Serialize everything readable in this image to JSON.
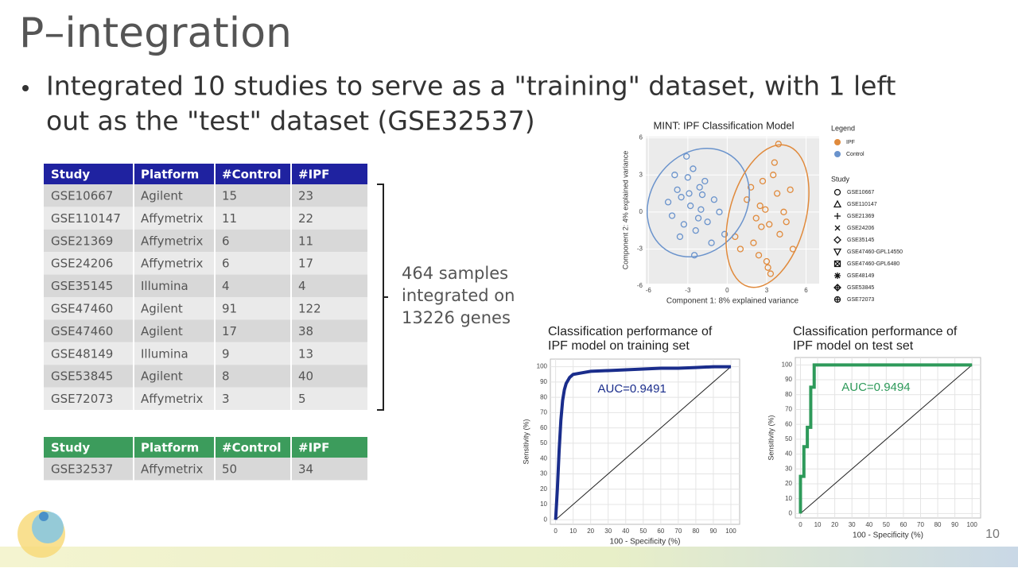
{
  "slide": {
    "title": "P–integration",
    "bullet": "Integrated 10 studies to serve as a \"training\" dataset, with 1 left",
    "bullet_cont": "out as the \"test\" dataset (GSE32537)",
    "page_number": "10"
  },
  "training_table": {
    "header": [
      "Study",
      "Platform",
      "#Control",
      "#IPF"
    ],
    "rows": [
      [
        "GSE10667",
        "Agilent",
        "15",
        "23"
      ],
      [
        "GSE110147",
        "Affymetrix",
        "11",
        "22"
      ],
      [
        "GSE21369",
        "Affymetrix",
        "6",
        "11"
      ],
      [
        "GSE24206",
        "Affymetrix",
        "6",
        "17"
      ],
      [
        "GSE35145",
        "Illumina",
        "4",
        "4"
      ],
      [
        "GSE47460",
        "Agilent",
        "91",
        "122"
      ],
      [
        "GSE47460",
        "Agilent",
        "17",
        "38"
      ],
      [
        "GSE48149",
        "Illumina",
        "9",
        "13"
      ],
      [
        "GSE53845",
        "Agilent",
        "8",
        "40"
      ],
      [
        "GSE72073",
        "Affymetrix",
        "3",
        "5"
      ]
    ]
  },
  "summary": [
    "464 samples",
    "integrated on",
    "13226 genes"
  ],
  "test_table": {
    "header": [
      "Study",
      "Platform",
      "#Control",
      "#IPF"
    ],
    "rows": [
      [
        "GSE32537",
        "Affymetrix",
        "50",
        "34"
      ]
    ]
  },
  "chart_data": [
    {
      "type": "scatter",
      "title": "MINT: IPF Classification Model",
      "x_label": "Component 1: 8% explained variance",
      "y_label": "Component 2: 4% explained variance",
      "xlim": [
        -6.2,
        7
      ],
      "xticks": [
        -6,
        -3,
        0,
        3,
        6
      ],
      "ylim": [
        -5.8,
        6.1
      ],
      "yticks": [
        -6,
        -3,
        0,
        3,
        6
      ],
      "grid": true,
      "legend_title": "Legend",
      "study_title": "Study",
      "studies": [
        "GSE10667",
        "GSE110147",
        "GSE21369",
        "GSE24206",
        "GSE35145",
        "GSE47460-GPL14550",
        "GSE47460-GPL6480",
        "GSE48149",
        "GSE53845",
        "GSE72073"
      ],
      "series": [
        {
          "name": "IPF",
          "color": "#e08a3c",
          "x": [
            2.5,
            3.2,
            3.8,
            2.0,
            4.3,
            1.5,
            3.0,
            2.7,
            4.0,
            3.5,
            1.0,
            2.2,
            4.8,
            3.3,
            2.9,
            0.6,
            3.6,
            2.4,
            4.5,
            1.8,
            3.9,
            2.6,
            5.0,
            3.1
          ],
          "y": [
            0.5,
            -1.0,
            1.5,
            -2.5,
            0.0,
            1.0,
            -4.0,
            2.5,
            -1.8,
            3.0,
            -3.0,
            -0.5,
            1.8,
            -5.0,
            0.2,
            -2.0,
            4.0,
            -3.5,
            -0.8,
            2.0,
            5.5,
            -1.2,
            -3.0,
            -4.5
          ]
        },
        {
          "name": "Control",
          "color": "#6a93cc",
          "x": [
            -3.5,
            -2.8,
            -2.1,
            -1.5,
            -4.2,
            -3.0,
            -2.4,
            -1.0,
            -3.8,
            -2.0,
            -2.6,
            -3.3,
            -1.7,
            -4.5,
            -2.2,
            -0.6,
            -3.1,
            -1.2,
            -2.9,
            -3.6,
            -0.2,
            -4.0,
            -1.9,
            -2.5
          ],
          "y": [
            1.2,
            0.5,
            2.0,
            -0.8,
            -0.3,
            2.8,
            -1.5,
            1.0,
            1.8,
            0.2,
            3.5,
            -1.0,
            2.5,
            0.8,
            -0.5,
            0.0,
            4.5,
            -2.5,
            1.5,
            -2.0,
            -1.8,
            3.0,
            1.4,
            -3.5
          ]
        }
      ]
    },
    {
      "type": "line",
      "title": [
        "Classification performance of",
        "IPF model on training set"
      ],
      "x_label": "100 - Specificity (%)",
      "y_label": "Sensitivity (%)",
      "annotation": "AUC=0.9491",
      "xlim": [
        -3,
        105
      ],
      "xticks": [
        0,
        10,
        20,
        30,
        40,
        50,
        60,
        70,
        80,
        90,
        100
      ],
      "ylim": [
        -3,
        105
      ],
      "yticks": [
        0,
        10,
        20,
        30,
        40,
        50,
        60,
        70,
        80,
        90,
        100
      ],
      "grid": true,
      "series": [
        {
          "color": "#1a2d8c",
          "x": [
            0,
            1,
            2,
            3,
            4,
            5,
            6,
            8,
            10,
            15,
            20,
            30,
            40,
            50,
            60,
            70,
            80,
            90,
            100
          ],
          "y": [
            0,
            20,
            45,
            65,
            78,
            85,
            89,
            93,
            95,
            96,
            97,
            97.5,
            98,
            98.5,
            99,
            99,
            99.5,
            100,
            100
          ]
        }
      ]
    },
    {
      "type": "line",
      "title": [
        "Classification performance of",
        "IPF model on test set"
      ],
      "x_label": "100 - Specificity (%)",
      "y_label": "Sensitivity (%)",
      "annotation": "AUC=0.9494",
      "xlim": [
        -3,
        105
      ],
      "xticks": [
        0,
        10,
        20,
        30,
        40,
        50,
        60,
        70,
        80,
        90,
        100
      ],
      "ylim": [
        -3,
        105
      ],
      "yticks": [
        0,
        10,
        20,
        30,
        40,
        50,
        60,
        70,
        80,
        90,
        100
      ],
      "grid": true,
      "series": [
        {
          "color": "#2e9a5a",
          "x": [
            0,
            0,
            2,
            2,
            4,
            4,
            6,
            6,
            8,
            8,
            100
          ],
          "y": [
            0,
            25,
            25,
            45,
            45,
            58,
            58,
            85,
            85,
            100,
            100
          ]
        }
      ]
    }
  ]
}
